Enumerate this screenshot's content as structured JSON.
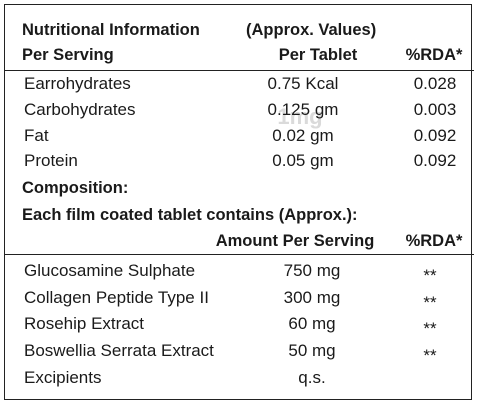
{
  "header": {
    "title": "Nutritional Information",
    "note": "(Approx. Values)",
    "columns": [
      "Per Serving",
      "Per Tablet",
      "%RDA*"
    ]
  },
  "nutrition_rows": [
    [
      "Earrohydrates",
      "0.75 Kcal",
      "0.028"
    ],
    [
      "Carbohydrates",
      "0.125 gm",
      "0.003"
    ],
    [
      "Fat",
      "0.02 gm",
      "0.092"
    ],
    [
      "Protein",
      "0.05 gm",
      "0.092"
    ]
  ],
  "composition": {
    "title": "Composition:",
    "subtitle": "Each film coated tablet contains (Approx.):",
    "columns": [
      "Amount Per Serving",
      "%RDA*"
    ],
    "rows": [
      [
        "Glucosamine Sulphate",
        "750 mg",
        "**"
      ],
      [
        "Collagen Peptide Type II",
        "300 mg",
        "**"
      ],
      [
        "Rosehip Extract",
        "60 mg",
        "**"
      ],
      [
        "Boswellia Serrata Extract",
        "50 mg",
        "**"
      ],
      [
        "Excipients",
        "q.s."
      ]
    ]
  },
  "watermark": "1mg"
}
